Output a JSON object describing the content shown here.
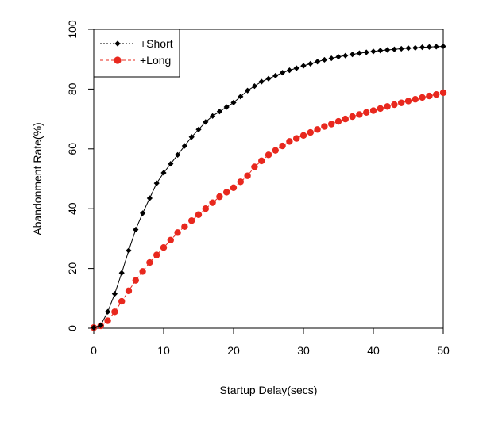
{
  "chart_data": {
    "type": "line",
    "title": "",
    "xlabel": "Startup Delay(secs)",
    "ylabel": "Abandonment Rate(%)",
    "xlim": [
      0,
      50
    ],
    "ylim": [
      0,
      100
    ],
    "xticks": [
      0,
      10,
      20,
      30,
      40,
      50
    ],
    "yticks": [
      0,
      20,
      40,
      60,
      80,
      100
    ],
    "grid": false,
    "legend_position": "top-left",
    "series": [
      {
        "name": "+Short",
        "color": "#000000",
        "marker": "diamond",
        "line_style": "solid",
        "x": [
          0,
          1,
          2,
          3,
          4,
          5,
          6,
          7,
          8,
          9,
          10,
          11,
          12,
          13,
          14,
          15,
          16,
          17,
          18,
          19,
          20,
          21,
          22,
          23,
          24,
          25,
          26,
          27,
          28,
          29,
          30,
          31,
          32,
          33,
          34,
          35,
          36,
          37,
          38,
          39,
          40,
          41,
          42,
          43,
          44,
          45,
          46,
          47,
          48,
          49,
          50
        ],
        "y": [
          0.2,
          1.0,
          5.5,
          11.5,
          18.5,
          26.0,
          33.0,
          38.5,
          43.5,
          48.5,
          52.0,
          55.0,
          58.0,
          61.0,
          64.0,
          66.5,
          69.0,
          71.0,
          72.5,
          74.0,
          75.5,
          77.5,
          79.5,
          81.0,
          82.5,
          83.5,
          84.5,
          85.5,
          86.3,
          87.0,
          87.8,
          88.5,
          89.2,
          89.8,
          90.3,
          90.8,
          91.2,
          91.6,
          92.0,
          92.3,
          92.6,
          92.9,
          93.1,
          93.3,
          93.5,
          93.7,
          93.8,
          94.0,
          94.1,
          94.2,
          94.3
        ]
      },
      {
        "name": "+Long",
        "color": "#e8281e",
        "marker": "circle",
        "line_style": "dashed",
        "x": [
          0,
          1,
          2,
          3,
          4,
          5,
          6,
          7,
          8,
          9,
          10,
          11,
          12,
          13,
          14,
          15,
          16,
          17,
          18,
          19,
          20,
          21,
          22,
          23,
          24,
          25,
          26,
          27,
          28,
          29,
          30,
          31,
          32,
          33,
          34,
          35,
          36,
          37,
          38,
          39,
          40,
          41,
          42,
          43,
          44,
          45,
          46,
          47,
          48,
          49,
          50
        ],
        "y": [
          0.2,
          0.8,
          2.5,
          5.5,
          9.0,
          12.5,
          16.0,
          19.0,
          22.0,
          24.5,
          27.0,
          29.5,
          32.0,
          34.0,
          36.0,
          38.0,
          40.0,
          42.0,
          44.0,
          45.5,
          47.0,
          49.0,
          51.0,
          54.0,
          56.0,
          58.0,
          59.5,
          61.0,
          62.5,
          63.5,
          64.5,
          65.5,
          66.5,
          67.5,
          68.3,
          69.2,
          70.0,
          70.8,
          71.5,
          72.2,
          72.8,
          73.5,
          74.2,
          74.8,
          75.4,
          76.0,
          76.6,
          77.2,
          77.7,
          78.2,
          78.8
        ]
      }
    ]
  }
}
